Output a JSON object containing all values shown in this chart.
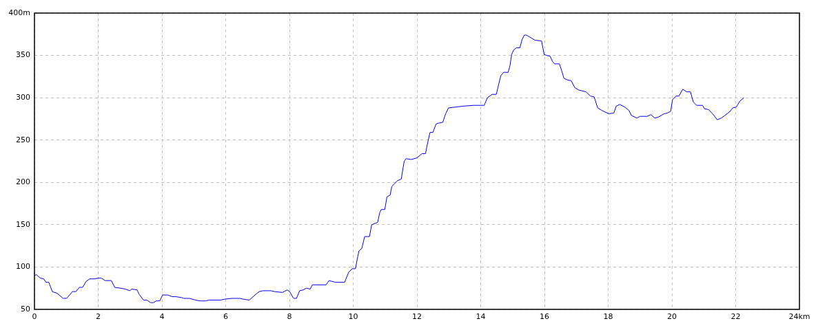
{
  "chart_data": {
    "type": "line",
    "x": [
      0,
      0.06,
      0.18,
      0.29,
      0.36,
      0.45,
      0.56,
      0.71,
      0.9,
      1.01,
      1.19,
      1.3,
      1.41,
      1.51,
      1.62,
      1.73,
      1.87,
      2.02,
      2.09,
      2.22,
      2.41,
      2.52,
      2.7,
      2.85,
      2.99,
      3.05,
      3.22,
      3.28,
      3.42,
      3.53,
      3.64,
      3.73,
      3.82,
      3.93,
      4.02,
      4.18,
      4.32,
      4.43,
      4.61,
      4.68,
      4.86,
      5.05,
      5.19,
      5.37,
      5.48,
      5.66,
      5.84,
      5.95,
      6.2,
      6.45,
      6.56,
      6.74,
      6.92,
      7.05,
      7.17,
      7.42,
      7.53,
      7.78,
      7.93,
      8.01,
      8.11,
      8.14,
      8.22,
      8.32,
      8.43,
      8.53,
      8.65,
      8.72,
      9.15,
      9.24,
      9.44,
      9.73,
      9.86,
      9.97,
      10.07,
      10.13,
      10.18,
      10.27,
      10.36,
      10.51,
      10.58,
      10.72,
      10.77,
      10.83,
      10.88,
      10.99,
      11.06,
      11.16,
      11.21,
      11.28,
      11.39,
      11.51,
      11.55,
      11.6,
      11.66,
      11.82,
      12,
      12.16,
      12.27,
      12.32,
      12.41,
      12.5,
      12.6,
      12.68,
      12.81,
      12.9,
      12.99,
      13.44,
      13.77,
      14.11,
      14.21,
      14.36,
      14.49,
      14.54,
      14.63,
      14.72,
      14.86,
      14.92,
      14.97,
      15.03,
      15.12,
      15.23,
      15.3,
      15.37,
      15.43,
      15.57,
      15.7,
      15.91,
      15.99,
      16.07,
      16.18,
      16.25,
      16.32,
      16.47,
      16.54,
      16.61,
      16.72,
      16.84,
      16.95,
      17.08,
      17.3,
      17.44,
      17.56,
      17.67,
      17.8,
      18.02,
      18.18,
      18.25,
      18.36,
      18.52,
      18.65,
      18.73,
      18.9,
      19,
      19.22,
      19.34,
      19.46,
      19.57,
      19.75,
      19.86,
      19.96,
      20.02,
      20.13,
      20.22,
      20.34,
      20.46,
      20.58,
      20.67,
      20.77,
      20.96,
      21.02,
      21.15,
      21.3,
      21.42,
      21.55,
      21.8,
      21.91,
      22.02,
      22.13,
      22.26
    ],
    "series": [
      {
        "color": "#0000ff",
        "values": [
          90,
          91,
          87,
          86,
          82,
          82,
          71,
          69,
          63,
          63,
          71,
          71,
          76,
          76,
          83,
          86,
          86,
          87,
          87,
          84,
          84,
          76,
          75,
          74,
          72,
          74,
          73,
          68,
          61,
          61,
          58,
          58,
          60,
          60,
          67,
          67,
          65,
          65,
          64,
          63,
          63,
          61,
          60,
          60,
          61,
          61,
          61,
          62,
          63,
          63,
          62,
          61,
          67,
          71,
          72,
          72,
          71,
          70,
          73,
          71,
          64,
          63,
          63,
          72,
          73,
          75,
          74,
          79,
          79,
          84,
          82,
          82,
          94,
          98,
          98,
          110,
          119,
          122,
          136,
          136,
          150,
          152,
          153,
          164,
          168,
          168,
          183,
          185,
          195,
          198,
          202,
          204,
          214,
          225,
          228,
          227,
          229,
          234,
          234,
          244,
          259,
          259,
          269,
          270,
          271,
          281,
          288,
          290,
          291,
          291,
          300,
          304,
          304,
          312,
          326,
          330,
          330,
          338,
          351,
          356,
          359,
          359,
          369,
          374,
          374,
          371,
          368,
          367,
          351,
          350,
          349,
          343,
          340,
          340,
          332,
          323,
          321,
          320,
          312,
          309,
          307,
          302,
          301,
          288,
          285,
          281,
          282,
          290,
          292,
          289,
          285,
          279,
          276,
          278,
          278,
          280,
          276,
          277,
          281,
          282,
          284,
          298,
          302,
          302,
          310,
          307,
          307,
          295,
          291,
          291,
          287,
          286,
          280,
          274,
          276,
          283,
          288,
          289,
          296,
          300
        ]
      }
    ],
    "xlim": [
      0,
      24
    ],
    "ylim": [
      50,
      400
    ],
    "xticks": [
      0,
      2,
      4,
      6,
      8,
      10,
      12,
      14,
      16,
      18,
      20,
      22,
      {
        "value": 24,
        "label": "24km"
      }
    ],
    "yticks": [
      50,
      100,
      150,
      200,
      250,
      300,
      350,
      {
        "value": 400,
        "label": "400m"
      }
    ],
    "grid": true
  }
}
